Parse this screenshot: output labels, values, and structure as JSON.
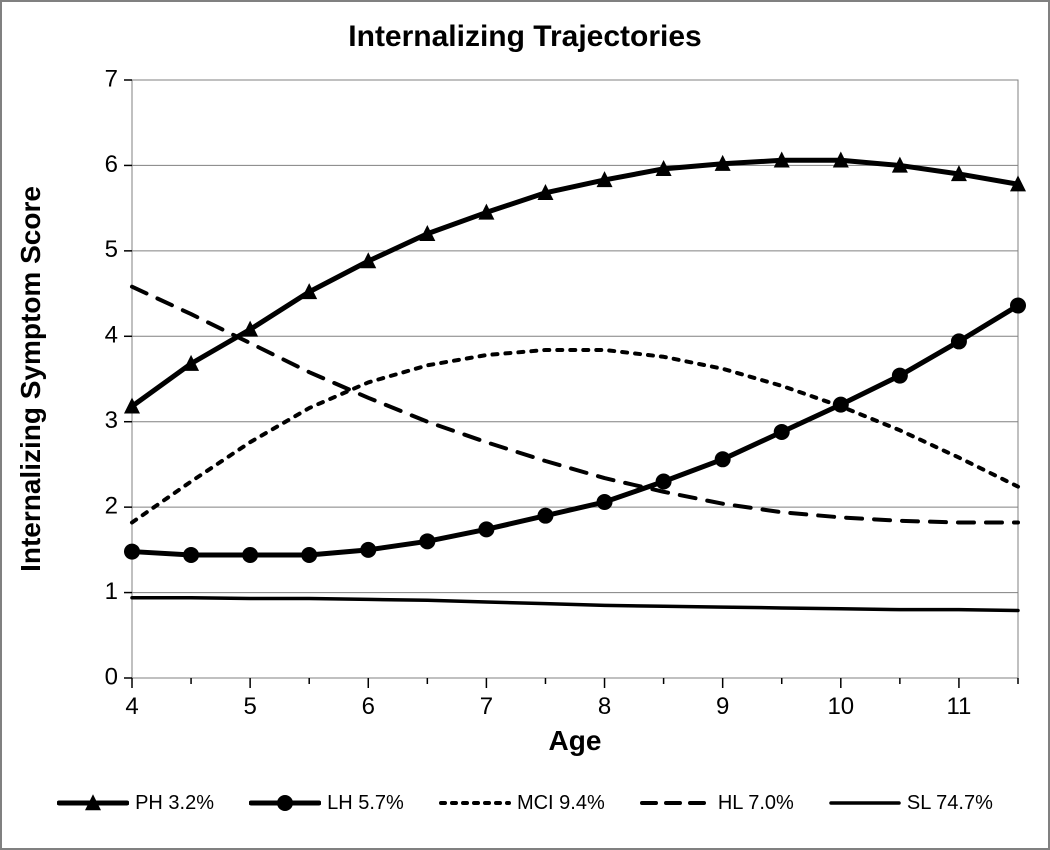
{
  "chart": {
    "type": "line",
    "title": "Internalizing Trajectories",
    "title_fontsize": 30,
    "title_fontweight": "bold",
    "background_color": "#ffffff",
    "frame_border_color": "#808080",
    "plot_border_color": "#808080",
    "grid_color": "#808080",
    "grid_linewidth": 1,
    "axis_linewidth": 1,
    "x": {
      "label": "Age",
      "label_fontsize": 28,
      "label_fontweight": "bold",
      "min": 4,
      "max": 11.5,
      "tick_step_major": 1,
      "tick_step_minor": 0.5,
      "tick_labels": [
        4,
        5,
        6,
        7,
        8,
        9,
        10,
        11
      ],
      "tick_fontsize": 24
    },
    "y": {
      "label": "Internalizing Symptom Score",
      "label_fontsize": 28,
      "label_fontweight": "bold",
      "min": 0,
      "max": 7,
      "tick_step": 1,
      "tick_labels": [
        0,
        1,
        2,
        3,
        4,
        5,
        6,
        7
      ],
      "tick_fontsize": 24
    },
    "x_values": [
      4,
      4.5,
      5,
      5.5,
      6,
      6.5,
      7,
      7.5,
      8,
      8.5,
      9,
      9.5,
      10,
      10.5,
      11,
      11.5
    ],
    "series": [
      {
        "id": "PH",
        "legend_label": "PH 3.2%",
        "color": "#000000",
        "line_width": 5,
        "dash": "solid",
        "marker": "triangle",
        "marker_size": 8,
        "values": [
          3.18,
          3.68,
          4.08,
          4.52,
          4.88,
          5.2,
          5.45,
          5.68,
          5.83,
          5.96,
          6.02,
          6.06,
          6.06,
          6.0,
          5.9,
          5.78
        ]
      },
      {
        "id": "LH",
        "legend_label": "LH 5.7%",
        "color": "#000000",
        "line_width": 5,
        "dash": "solid",
        "marker": "circle",
        "marker_size": 8,
        "values": [
          1.48,
          1.44,
          1.44,
          1.44,
          1.5,
          1.6,
          1.74,
          1.9,
          2.06,
          2.3,
          2.56,
          2.88,
          3.2,
          3.54,
          3.94,
          4.36
        ]
      },
      {
        "id": "MCI",
        "legend_label": "MCI 9.4%",
        "color": "#000000",
        "line_width": 4,
        "dash": "dot",
        "marker": "none",
        "values": [
          1.82,
          2.3,
          2.76,
          3.16,
          3.46,
          3.66,
          3.78,
          3.84,
          3.84,
          3.76,
          3.62,
          3.42,
          3.18,
          2.9,
          2.58,
          2.24
        ]
      },
      {
        "id": "HL",
        "legend_label": "HL 7.0%",
        "color": "#000000",
        "line_width": 4,
        "dash": "dash",
        "marker": "none",
        "values": [
          4.58,
          4.26,
          3.92,
          3.58,
          3.28,
          3.0,
          2.76,
          2.54,
          2.34,
          2.18,
          2.04,
          1.94,
          1.88,
          1.84,
          1.82,
          1.82
        ]
      },
      {
        "id": "SL",
        "legend_label": "SL 74.7%",
        "color": "#000000",
        "line_width": 3.5,
        "dash": "solid",
        "marker": "none",
        "values": [
          0.94,
          0.94,
          0.93,
          0.93,
          0.92,
          0.91,
          0.89,
          0.87,
          0.85,
          0.84,
          0.83,
          0.82,
          0.81,
          0.8,
          0.8,
          0.79
        ]
      }
    ],
    "legend": {
      "position": "bottom",
      "fontsize": 20,
      "swatch_width": 72
    }
  }
}
